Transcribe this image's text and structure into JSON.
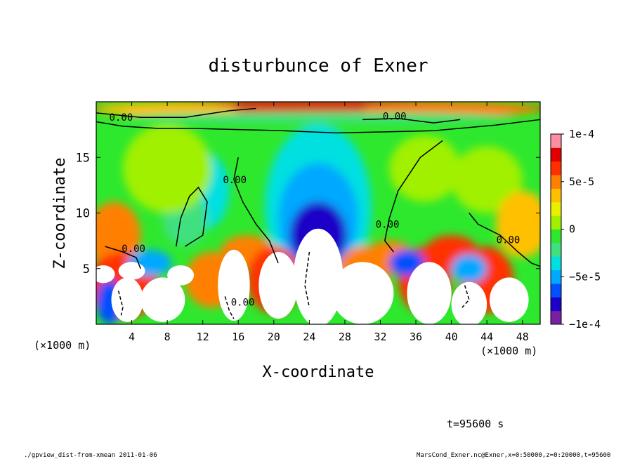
{
  "chart_data": {
    "type": "heatmap",
    "title": "disturbunce of Exner",
    "xlabel": "X-coordinate",
    "ylabel": "Z-coordinate",
    "x_unit_left": "(×1000 m)",
    "x_unit_right": "(×1000 m)",
    "xlim": [
      0,
      50
    ],
    "ylim": [
      0,
      20
    ],
    "xticks": [
      4,
      8,
      12,
      16,
      20,
      24,
      28,
      32,
      36,
      40,
      44,
      48
    ],
    "yticks": [
      5,
      10,
      15
    ],
    "colorbar": {
      "range": [
        -0.0001,
        0.0001
      ],
      "ticks": [
        {
          "value": 0.0001,
          "label": "1e-4"
        },
        {
          "value": 5e-05,
          "label": "5e-5"
        },
        {
          "value": 0,
          "label": "0"
        },
        {
          "value": -5e-05,
          "label": "−5e-5"
        },
        {
          "value": -0.0001,
          "label": "−1e-4"
        }
      ]
    },
    "contour_labels": [
      {
        "text": "0.00",
        "x": 2.8,
        "z": 18.6
      },
      {
        "text": "0.00",
        "x": 33.6,
        "z": 18.7
      },
      {
        "text": "0.00",
        "x": 15.6,
        "z": 13.0
      },
      {
        "text": "0.00",
        "x": 4.2,
        "z": 6.8
      },
      {
        "text": "0.00",
        "x": 32.8,
        "z": 9.0
      },
      {
        "text": "0.00",
        "x": 46.4,
        "z": 7.6
      },
      {
        "text": "0.00",
        "x": 16.5,
        "z": 2.0
      }
    ],
    "time_label": "t=95600 s"
  },
  "footer": {
    "left": "./gpview_dist-from-xmean  2011-01-06",
    "right": "MarsCond_Exner.nc@Exner,x=0:50000,z=0:20000,t=95600"
  },
  "colors": {
    "palette": [
      "#7b1fa2",
      "#1a00c8",
      "#0050ff",
      "#00a8ff",
      "#00e0e0",
      "#40e080",
      "#2ee82e",
      "#a0f000",
      "#e8f000",
      "#ffc000",
      "#ff8000",
      "#ff3000",
      "#e00000",
      "#ff8fa0"
    ]
  }
}
